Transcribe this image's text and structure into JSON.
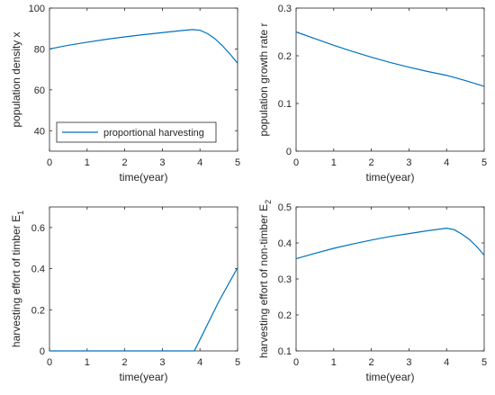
{
  "chart_data": [
    {
      "type": "line",
      "xlabel": "time(year)",
      "ylabel": "population density x",
      "xlim": [
        0,
        5
      ],
      "ylim": [
        30,
        100
      ],
      "xticks": [
        "0",
        "1",
        "2",
        "3",
        "4",
        "5"
      ],
      "yticks": [
        "40",
        "60",
        "80",
        "100"
      ],
      "ytick_values": [
        40,
        60,
        80,
        100
      ],
      "legend": {
        "entries": [
          "proportional harvesting"
        ],
        "position": "bottom-left"
      },
      "series": [
        {
          "name": "proportional harvesting",
          "color": "#0072BD",
          "x": [
            0,
            0.5,
            1,
            1.5,
            2,
            2.5,
            3,
            3.5,
            3.8,
            4,
            4.2,
            4.4,
            4.6,
            4.8,
            5
          ],
          "y": [
            80,
            81.8,
            83.3,
            84.7,
            85.9,
            87,
            88,
            89,
            89.5,
            89.2,
            87.5,
            85,
            81.5,
            77.5,
            73
          ]
        }
      ]
    },
    {
      "type": "line",
      "xlabel": "time(year)",
      "ylabel": "population growth rate r",
      "xlim": [
        0,
        5
      ],
      "ylim": [
        0,
        0.3
      ],
      "xticks": [
        "0",
        "1",
        "2",
        "3",
        "4",
        "5"
      ],
      "yticks": [
        "0",
        "0.1",
        "0.2",
        "0.3"
      ],
      "ytick_values": [
        0,
        0.1,
        0.2,
        0.3
      ],
      "series": [
        {
          "color": "#0072BD",
          "x": [
            0,
            0.5,
            1,
            1.5,
            2,
            2.5,
            3,
            3.5,
            4,
            4.5,
            5
          ],
          "y": [
            0.25,
            0.236,
            0.222,
            0.209,
            0.197,
            0.186,
            0.176,
            0.167,
            0.159,
            0.148,
            0.136
          ]
        }
      ]
    },
    {
      "type": "line",
      "xlabel": "time(year)",
      "ylabel_main": "harvesting effort of timber E",
      "ylabel_sub": "1",
      "xlim": [
        0,
        5
      ],
      "ylim": [
        0,
        0.7
      ],
      "xticks": [
        "0",
        "1",
        "2",
        "3",
        "4",
        "5"
      ],
      "yticks": [
        "0",
        "0.2",
        "0.4",
        "0.6"
      ],
      "ytick_values": [
        0,
        0.2,
        0.4,
        0.6
      ],
      "series": [
        {
          "color": "#0072BD",
          "x": [
            0,
            1,
            2,
            3,
            3.85,
            4,
            4.5,
            5
          ],
          "y": [
            0,
            0,
            0,
            0,
            0,
            0.055,
            0.24,
            0.405
          ]
        }
      ]
    },
    {
      "type": "line",
      "xlabel": "time(year)",
      "ylabel_main": "harvesting effort of non-timber E",
      "ylabel_sub": "2",
      "xlim": [
        0,
        5
      ],
      "ylim": [
        0.1,
        0.5
      ],
      "xticks": [
        "0",
        "1",
        "2",
        "3",
        "4",
        "5"
      ],
      "yticks": [
        "0.1",
        "0.2",
        "0.3",
        "0.4",
        "0.5"
      ],
      "ytick_values": [
        0.1,
        0.2,
        0.3,
        0.4,
        0.5
      ],
      "series": [
        {
          "color": "#0072BD",
          "x": [
            0,
            0.5,
            1,
            1.5,
            2,
            2.5,
            3,
            3.5,
            4,
            4.2,
            4.4,
            4.6,
            4.8,
            5
          ],
          "y": [
            0.356,
            0.371,
            0.385,
            0.397,
            0.408,
            0.418,
            0.426,
            0.434,
            0.441,
            0.437,
            0.425,
            0.41,
            0.39,
            0.366
          ]
        }
      ]
    }
  ]
}
